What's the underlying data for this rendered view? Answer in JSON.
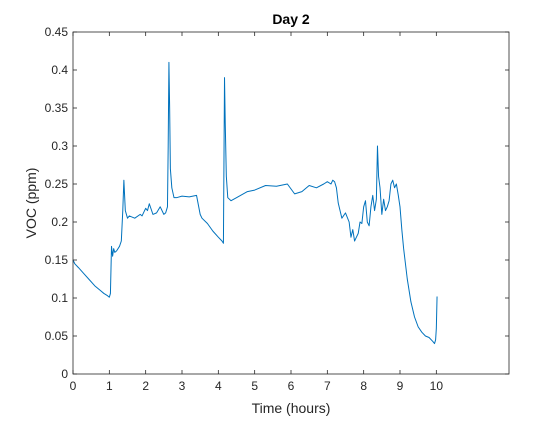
{
  "chart_data": {
    "type": "line",
    "title": "Day 2",
    "xlabel": "Time (hours)",
    "ylabel": "VOC (ppm)",
    "xlim": [
      0,
      12
    ],
    "ylim": [
      0,
      0.45
    ],
    "xticks": [
      0,
      1,
      2,
      3,
      4,
      5,
      6,
      7,
      8,
      9,
      10
    ],
    "xtick_labels": [
      "0",
      "1",
      "2",
      "3",
      "4",
      "5",
      "6",
      "7",
      "8",
      "9",
      "10"
    ],
    "yticks": [
      0,
      0.05,
      0.1,
      0.15,
      0.2,
      0.25,
      0.3,
      0.35,
      0.4,
      0.45
    ],
    "ytick_labels": [
      "0",
      "0.05",
      "0.1",
      "0.15",
      "0.2",
      "0.25",
      "0.3",
      "0.35",
      "0.4",
      "0.45"
    ],
    "grid": false,
    "box": true,
    "series": [
      {
        "color": "#0072BD",
        "x": [
          0,
          0.05,
          0.15,
          0.3,
          0.45,
          0.6,
          0.75,
          0.85,
          0.95,
          1.0,
          1.03,
          1.06,
          1.09,
          1.12,
          1.15,
          1.2,
          1.28,
          1.33,
          1.37,
          1.4,
          1.44,
          1.5,
          1.55,
          1.7,
          1.85,
          1.9,
          2.0,
          2.05,
          2.1,
          2.2,
          2.3,
          2.4,
          2.5,
          2.55,
          2.6,
          2.62,
          2.64,
          2.66,
          2.68,
          2.72,
          2.78,
          2.85,
          3.0,
          3.2,
          3.4,
          3.5,
          3.55,
          3.7,
          3.85,
          4.0,
          4.1,
          4.14,
          4.17,
          4.19,
          4.22,
          4.26,
          4.35,
          4.5,
          4.8,
          5.0,
          5.3,
          5.6,
          5.9,
          6.1,
          6.3,
          6.5,
          6.7,
          6.9,
          7.0,
          7.1,
          7.15,
          7.2,
          7.25,
          7.3,
          7.4,
          7.5,
          7.6,
          7.65,
          7.7,
          7.75,
          7.8,
          7.85,
          7.9,
          7.95,
          8.0,
          8.05,
          8.1,
          8.15,
          8.2,
          8.25,
          8.3,
          8.35,
          8.38,
          8.41,
          8.45,
          8.5,
          8.55,
          8.6,
          8.65,
          8.7,
          8.75,
          8.8,
          8.85,
          8.9,
          8.95,
          9.0,
          9.05,
          9.1,
          9.2,
          9.3,
          9.4,
          9.5,
          9.6,
          9.7,
          9.8,
          9.9,
          9.95,
          9.98,
          10.0,
          10.02
        ],
        "y": [
          0.15,
          0.145,
          0.14,
          0.132,
          0.124,
          0.116,
          0.11,
          0.106,
          0.103,
          0.101,
          0.106,
          0.168,
          0.155,
          0.165,
          0.16,
          0.162,
          0.168,
          0.175,
          0.215,
          0.255,
          0.215,
          0.205,
          0.208,
          0.205,
          0.21,
          0.208,
          0.218,
          0.215,
          0.224,
          0.21,
          0.212,
          0.22,
          0.21,
          0.212,
          0.22,
          0.3,
          0.41,
          0.35,
          0.27,
          0.245,
          0.232,
          0.232,
          0.234,
          0.233,
          0.235,
          0.21,
          0.205,
          0.198,
          0.188,
          0.18,
          0.175,
          0.172,
          0.39,
          0.33,
          0.26,
          0.232,
          0.228,
          0.232,
          0.24,
          0.242,
          0.248,
          0.247,
          0.25,
          0.237,
          0.24,
          0.248,
          0.245,
          0.25,
          0.253,
          0.25,
          0.255,
          0.253,
          0.245,
          0.225,
          0.205,
          0.212,
          0.2,
          0.18,
          0.19,
          0.175,
          0.18,
          0.185,
          0.2,
          0.198,
          0.22,
          0.228,
          0.2,
          0.195,
          0.22,
          0.235,
          0.215,
          0.23,
          0.3,
          0.26,
          0.245,
          0.21,
          0.23,
          0.215,
          0.22,
          0.228,
          0.25,
          0.255,
          0.245,
          0.25,
          0.236,
          0.22,
          0.19,
          0.165,
          0.125,
          0.095,
          0.075,
          0.062,
          0.055,
          0.05,
          0.048,
          0.043,
          0.04,
          0.045,
          0.06,
          0.102
        ]
      }
    ]
  }
}
